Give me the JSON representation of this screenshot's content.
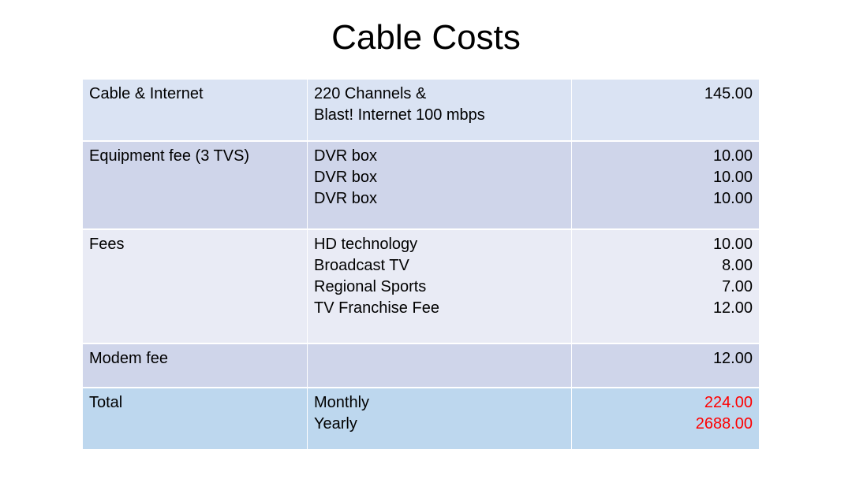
{
  "title": "Cable Costs",
  "table": {
    "rows": [
      {
        "item": "Cable & Internet",
        "details": [
          "220 Channels &",
          "Blast! Internet 100 mbps"
        ],
        "amounts": [
          "145.00"
        ],
        "color": "#dae3f3",
        "height": 79
      },
      {
        "item": "Equipment fee (3 TVS)",
        "details": [
          "DVR box",
          "DVR box",
          "DVR box"
        ],
        "amounts": [
          "10.00",
          "10.00",
          "10.00"
        ],
        "color": "#cfd5ea",
        "height": 112
      },
      {
        "item": "Fees",
        "details": [
          "HD technology",
          "Broadcast TV",
          "Regional Sports",
          "TV Franchise Fee"
        ],
        "amounts": [
          "10.00",
          "8.00",
          "7.00",
          "12.00"
        ],
        "color": "#e9ebf5",
        "height": 145
      },
      {
        "item": "Modem fee",
        "details": [],
        "amounts": [
          "12.00"
        ],
        "color": "#cfd5ea",
        "height": 56
      },
      {
        "item": "Total",
        "details": [
          "Monthly",
          "Yearly"
        ],
        "amounts": [
          "224.00",
          "2688.00"
        ],
        "color": "#bdd7ee",
        "height": 79,
        "amount_color": "#ff0000"
      }
    ]
  }
}
